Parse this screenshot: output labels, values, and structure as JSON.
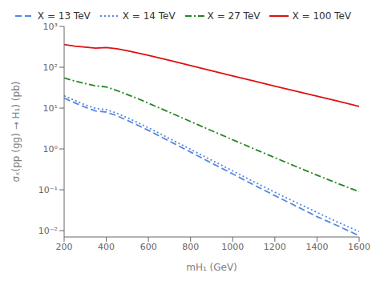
{
  "chart_data": {
    "type": "line",
    "xlabel": "mH₁ (GeV)",
    "ylabel": "σₓ(pp (gg) → H₁) (pb)",
    "log": "y",
    "grid": false,
    "legend": "upper right",
    "xlim": [
      200,
      1600
    ],
    "ylim": [
      0.007,
      1000
    ],
    "xticks": [
      200,
      400,
      600,
      800,
      1000,
      1200,
      1400,
      1600
    ],
    "yticks": [
      {
        "value": 0.01,
        "label": "10⁻²"
      },
      {
        "value": 0.1,
        "label": "10⁻¹"
      },
      {
        "value": 1,
        "label": "10⁰"
      },
      {
        "value": 10,
        "label": "10¹"
      },
      {
        "value": 100,
        "label": "10²"
      },
      {
        "value": 1000,
        "label": "10³"
      }
    ],
    "series": [
      {
        "name": "X = 13 TeV",
        "color": "#5588DD",
        "line_style": "dashed",
        "x": [
          200,
          250,
          300,
          350,
          400,
          450,
          500,
          550,
          600,
          650,
          700,
          800,
          900,
          1000,
          1100,
          1200,
          1300,
          1400,
          1500,
          1600
        ],
        "values": [
          17.5,
          13.5,
          10.5,
          8.5,
          8.0,
          6.5,
          5.0,
          3.8,
          2.85,
          2.1,
          1.55,
          0.84,
          0.45,
          0.245,
          0.132,
          0.072,
          0.04,
          0.022,
          0.013,
          0.0075
        ]
      },
      {
        "name": "X = 14 TeV",
        "color": "#5588DD",
        "line_style": "dotted",
        "x": [
          200,
          250,
          300,
          350,
          400,
          450,
          500,
          550,
          600,
          650,
          700,
          800,
          900,
          1000,
          1100,
          1200,
          1300,
          1400,
          1500,
          1600
        ],
        "values": [
          20.0,
          15.5,
          12.0,
          9.8,
          9.2,
          7.5,
          5.8,
          4.4,
          3.3,
          2.45,
          1.8,
          0.98,
          0.53,
          0.29,
          0.158,
          0.087,
          0.049,
          0.028,
          0.016,
          0.0095
        ]
      },
      {
        "name": "X = 27 TeV",
        "color": "#228822",
        "line_style": "dashdot",
        "x": [
          200,
          250,
          300,
          350,
          400,
          450,
          500,
          550,
          600,
          650,
          700,
          800,
          900,
          1000,
          1100,
          1200,
          1300,
          1400,
          1500,
          1600
        ],
        "values": [
          55.0,
          46.0,
          40.0,
          35.0,
          33.0,
          27.0,
          21.5,
          17.0,
          13.2,
          10.2,
          7.9,
          4.7,
          2.8,
          1.68,
          1.01,
          0.61,
          0.372,
          0.228,
          0.142,
          0.09
        ]
      },
      {
        "name": "X = 100 TeV",
        "color": "#DD1111",
        "line_style": "solid",
        "x": [
          200,
          250,
          300,
          350,
          400,
          450,
          500,
          600,
          700,
          800,
          900,
          1000,
          1100,
          1200,
          1300,
          1400,
          1500,
          1600
        ],
        "values": [
          360.0,
          330.0,
          310.0,
          295.0,
          305.0,
          285.0,
          255.0,
          195.0,
          147.0,
          110.0,
          82.0,
          61.0,
          46.0,
          34.5,
          26.0,
          19.5,
          14.8,
          11.0
        ]
      }
    ]
  }
}
